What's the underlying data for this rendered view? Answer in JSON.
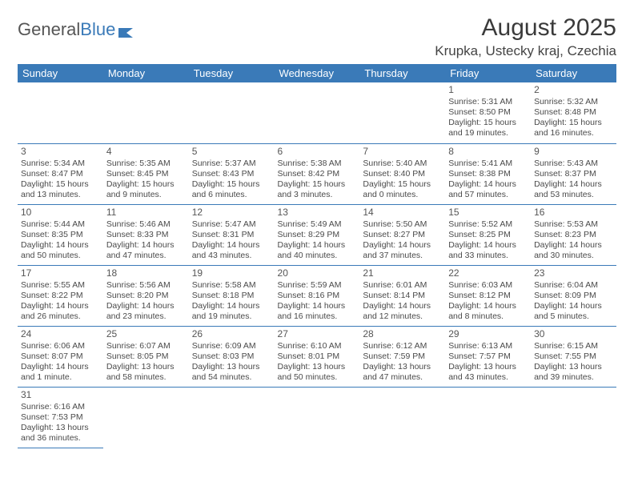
{
  "brand": {
    "part1": "General",
    "part2": "Blue"
  },
  "title": "August 2025",
  "location": "Krupka, Ustecky kraj, Czechia",
  "colors": {
    "header_bg": "#3a7ab8",
    "header_fg": "#ffffff",
    "border": "#3a7ab8",
    "text": "#4a4a4a"
  },
  "day_headers": [
    "Sunday",
    "Monday",
    "Tuesday",
    "Wednesday",
    "Thursday",
    "Friday",
    "Saturday"
  ],
  "weeks": [
    [
      null,
      null,
      null,
      null,
      null,
      {
        "n": "1",
        "sr": "5:31 AM",
        "ss": "8:50 PM",
        "dl": "15 hours and 19 minutes."
      },
      {
        "n": "2",
        "sr": "5:32 AM",
        "ss": "8:48 PM",
        "dl": "15 hours and 16 minutes."
      }
    ],
    [
      {
        "n": "3",
        "sr": "5:34 AM",
        "ss": "8:47 PM",
        "dl": "15 hours and 13 minutes."
      },
      {
        "n": "4",
        "sr": "5:35 AM",
        "ss": "8:45 PM",
        "dl": "15 hours and 9 minutes."
      },
      {
        "n": "5",
        "sr": "5:37 AM",
        "ss": "8:43 PM",
        "dl": "15 hours and 6 minutes."
      },
      {
        "n": "6",
        "sr": "5:38 AM",
        "ss": "8:42 PM",
        "dl": "15 hours and 3 minutes."
      },
      {
        "n": "7",
        "sr": "5:40 AM",
        "ss": "8:40 PM",
        "dl": "15 hours and 0 minutes."
      },
      {
        "n": "8",
        "sr": "5:41 AM",
        "ss": "8:38 PM",
        "dl": "14 hours and 57 minutes."
      },
      {
        "n": "9",
        "sr": "5:43 AM",
        "ss": "8:37 PM",
        "dl": "14 hours and 53 minutes."
      }
    ],
    [
      {
        "n": "10",
        "sr": "5:44 AM",
        "ss": "8:35 PM",
        "dl": "14 hours and 50 minutes."
      },
      {
        "n": "11",
        "sr": "5:46 AM",
        "ss": "8:33 PM",
        "dl": "14 hours and 47 minutes."
      },
      {
        "n": "12",
        "sr": "5:47 AM",
        "ss": "8:31 PM",
        "dl": "14 hours and 43 minutes."
      },
      {
        "n": "13",
        "sr": "5:49 AM",
        "ss": "8:29 PM",
        "dl": "14 hours and 40 minutes."
      },
      {
        "n": "14",
        "sr": "5:50 AM",
        "ss": "8:27 PM",
        "dl": "14 hours and 37 minutes."
      },
      {
        "n": "15",
        "sr": "5:52 AM",
        "ss": "8:25 PM",
        "dl": "14 hours and 33 minutes."
      },
      {
        "n": "16",
        "sr": "5:53 AM",
        "ss": "8:23 PM",
        "dl": "14 hours and 30 minutes."
      }
    ],
    [
      {
        "n": "17",
        "sr": "5:55 AM",
        "ss": "8:22 PM",
        "dl": "14 hours and 26 minutes."
      },
      {
        "n": "18",
        "sr": "5:56 AM",
        "ss": "8:20 PM",
        "dl": "14 hours and 23 minutes."
      },
      {
        "n": "19",
        "sr": "5:58 AM",
        "ss": "8:18 PM",
        "dl": "14 hours and 19 minutes."
      },
      {
        "n": "20",
        "sr": "5:59 AM",
        "ss": "8:16 PM",
        "dl": "14 hours and 16 minutes."
      },
      {
        "n": "21",
        "sr": "6:01 AM",
        "ss": "8:14 PM",
        "dl": "14 hours and 12 minutes."
      },
      {
        "n": "22",
        "sr": "6:03 AM",
        "ss": "8:12 PM",
        "dl": "14 hours and 8 minutes."
      },
      {
        "n": "23",
        "sr": "6:04 AM",
        "ss": "8:09 PM",
        "dl": "14 hours and 5 minutes."
      }
    ],
    [
      {
        "n": "24",
        "sr": "6:06 AM",
        "ss": "8:07 PM",
        "dl": "14 hours and 1 minute."
      },
      {
        "n": "25",
        "sr": "6:07 AM",
        "ss": "8:05 PM",
        "dl": "13 hours and 58 minutes."
      },
      {
        "n": "26",
        "sr": "6:09 AM",
        "ss": "8:03 PM",
        "dl": "13 hours and 54 minutes."
      },
      {
        "n": "27",
        "sr": "6:10 AM",
        "ss": "8:01 PM",
        "dl": "13 hours and 50 minutes."
      },
      {
        "n": "28",
        "sr": "6:12 AM",
        "ss": "7:59 PM",
        "dl": "13 hours and 47 minutes."
      },
      {
        "n": "29",
        "sr": "6:13 AM",
        "ss": "7:57 PM",
        "dl": "13 hours and 43 minutes."
      },
      {
        "n": "30",
        "sr": "6:15 AM",
        "ss": "7:55 PM",
        "dl": "13 hours and 39 minutes."
      }
    ],
    [
      {
        "n": "31",
        "sr": "6:16 AM",
        "ss": "7:53 PM",
        "dl": "13 hours and 36 minutes."
      },
      null,
      null,
      null,
      null,
      null,
      null
    ]
  ],
  "labels": {
    "sunrise": "Sunrise: ",
    "sunset": "Sunset: ",
    "daylight": "Daylight: "
  }
}
